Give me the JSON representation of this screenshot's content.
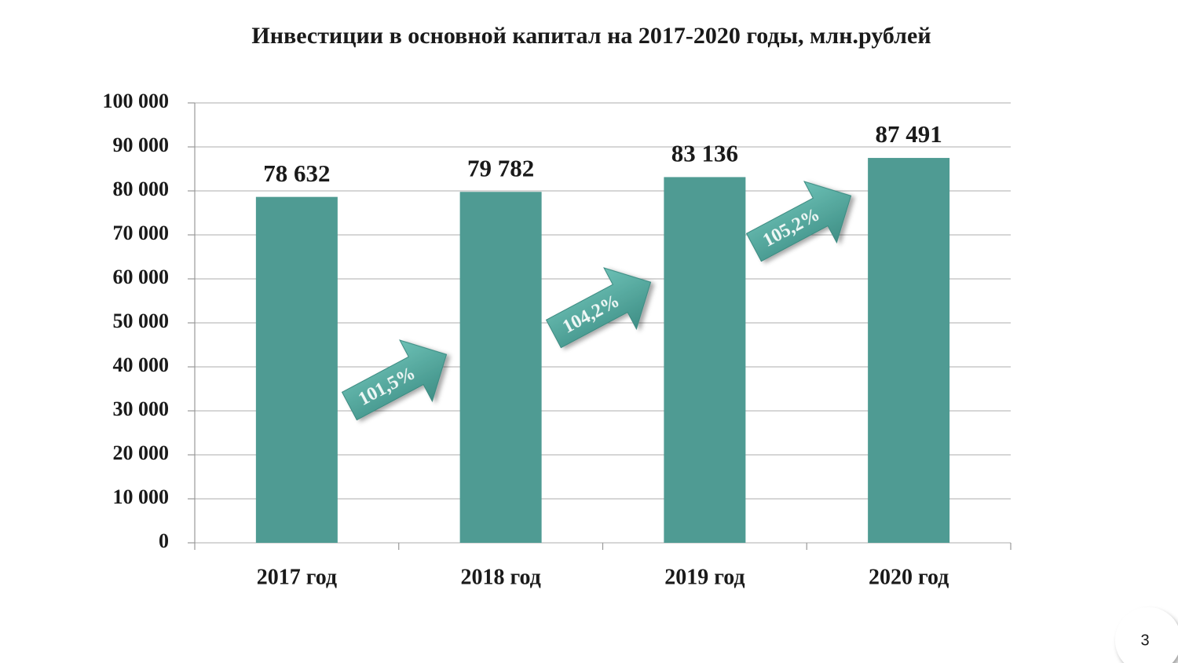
{
  "chart_data": {
    "type": "bar",
    "title": "Инвестиции в основной капитал на 2017-2020 годы, млн.рублей",
    "categories": [
      "2017 год",
      "2018 год",
      "2019 год",
      "2020 год"
    ],
    "values": [
      78632,
      79782,
      83136,
      87491
    ],
    "value_labels": [
      "78 632",
      "79 782",
      "83 136",
      "87 491"
    ],
    "color": "#4f9b93",
    "ylim": [
      0,
      100000
    ],
    "yticks": [
      0,
      {
        "value": 10000,
        "label": "10 000"
      },
      {
        "value": 20000,
        "label": "20 000"
      },
      {
        "value": 30000,
        "label": "30 000"
      },
      {
        "value": 40000,
        "label": "40 000"
      },
      {
        "value": 50000,
        "label": "50 000"
      },
      {
        "value": 60000,
        "label": "60 000"
      },
      {
        "value": 70000,
        "label": "70 000"
      },
      {
        "value": 80000,
        "label": "80 000"
      },
      {
        "value": 90000,
        "label": "90 000"
      },
      {
        "value": 100000,
        "label": "100 000"
      }
    ],
    "grid": true,
    "annotations": [
      "101,5%",
      "104,2%",
      "105,2%"
    ]
  },
  "page_number": "3"
}
